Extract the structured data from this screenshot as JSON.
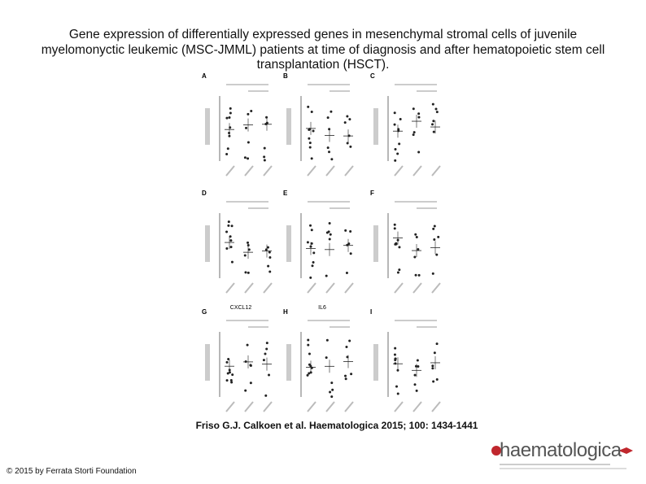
{
  "header": {
    "title": "Gene expression of differentially expressed genes in mesenchymal stromal cells of juvenile myelomonyctic leukemic (MSC-JMML) patients at time of diagnosis and after hematopoietic stem cell transplantation (HSCT)."
  },
  "figure": {
    "panels": [
      {
        "letter": "A"
      },
      {
        "letter": "B"
      },
      {
        "letter": "C"
      },
      {
        "letter": "D"
      },
      {
        "letter": "E"
      },
      {
        "letter": "F"
      },
      {
        "letter": "G",
        "gene": "CXCL12"
      },
      {
        "letter": "H",
        "gene": "IL6"
      },
      {
        "letter": "I"
      }
    ]
  },
  "citation": "Friso G.J. Calkoen et al. Haematologica 2015; 100: 1434-1441",
  "copyright": "© 2015 by Ferrata Storti Foundation",
  "logo": {
    "name": "haematologica"
  }
}
